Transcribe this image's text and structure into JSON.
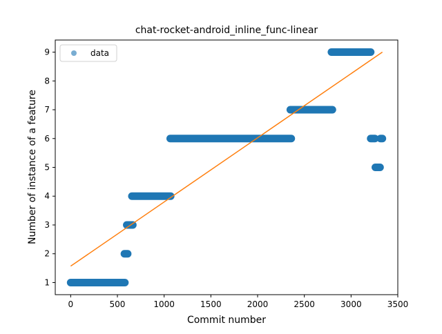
{
  "chart_data": {
    "type": "scatter",
    "title": "chat-rocket-android_inline_func-linear",
    "xlabel": "Commit number",
    "ylabel": "Number of instance of a feature",
    "xlim": [
      -165,
      3500
    ],
    "ylim": [
      0.58,
      9.42
    ],
    "x_ticks": [
      0,
      500,
      1000,
      1500,
      2000,
      2500,
      3000,
      3500
    ],
    "y_ticks": [
      1,
      2,
      3,
      4,
      5,
      6,
      7,
      8,
      9
    ],
    "grid": false,
    "legend": {
      "position": "top-left",
      "entries": [
        "data"
      ]
    },
    "series": [
      {
        "name": "data",
        "kind": "scatter",
        "color": "#1f77b4",
        "segments": [
          {
            "x_start": 0,
            "x_end": 580,
            "y": 1
          },
          {
            "x_start": 575,
            "x_end": 610,
            "y": 2
          },
          {
            "x_start": 600,
            "x_end": 665,
            "y": 3
          },
          {
            "x_start": 655,
            "x_end": 1070,
            "y": 4
          },
          {
            "x_start": 1065,
            "x_end": 2360,
            "y": 6
          },
          {
            "x_start": 2350,
            "x_end": 2800,
            "y": 7
          },
          {
            "x_start": 2790,
            "x_end": 3210,
            "y": 9
          },
          {
            "x_start": 3210,
            "x_end": 3255,
            "y": 6
          },
          {
            "x_start": 3260,
            "x_end": 3310,
            "y": 5
          },
          {
            "x_start": 3315,
            "x_end": 3335,
            "y": 6
          }
        ]
      },
      {
        "name": "",
        "kind": "line",
        "color": "#ff7f0e",
        "points": [
          [
            0,
            1.57
          ],
          [
            3335,
            9.0
          ]
        ]
      }
    ]
  }
}
